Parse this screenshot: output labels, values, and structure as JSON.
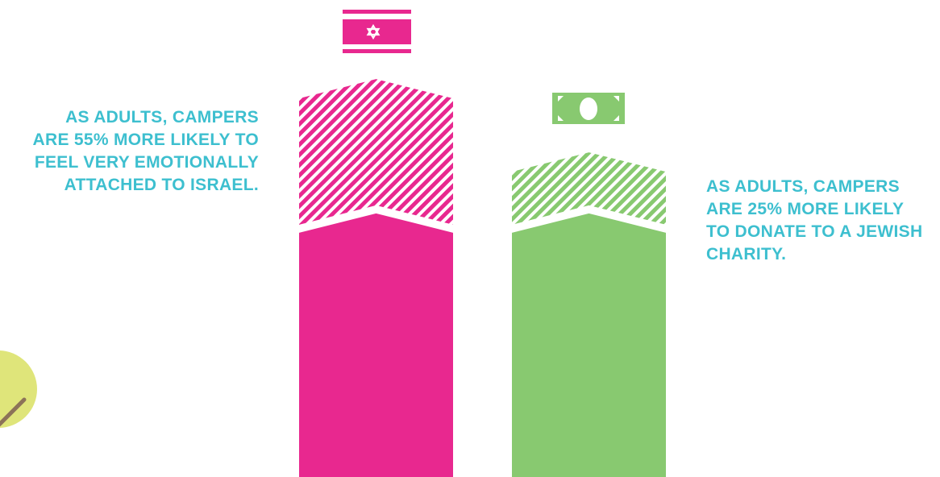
{
  "colors": {
    "israel": "#e8288f",
    "charity": "#88c970",
    "text": "#3dbfcf",
    "circle": "#dfe57a",
    "stick": "#8c7358"
  },
  "captions": {
    "left": [
      "AS ADULTS, CAMPERS",
      "ARE 55% MORE LIKELY TO",
      "FEEL VERY EMOTIONALLY",
      "ATTACHED TO ISRAEL."
    ],
    "right": [
      "AS ADULTS, CAMPERS",
      "ARE 25% MORE LIKELY",
      "TO DONATE TO A JEWISH",
      "CHARITY."
    ]
  },
  "icons": {
    "israel": "israel-flag-icon",
    "charity": "dollar-bill-icon"
  },
  "chart_data": {
    "type": "bar",
    "stacked": true,
    "categories": [
      "Israel",
      "Charity"
    ],
    "series": [
      {
        "values": [
          1,
          1
        ]
      },
      {
        "values": [
          0.55,
          0.25
        ]
      }
    ],
    "ylim": [
      0,
      1.6
    ],
    "xlabel": "",
    "ylabel": "",
    "title": "",
    "grid": false
  }
}
